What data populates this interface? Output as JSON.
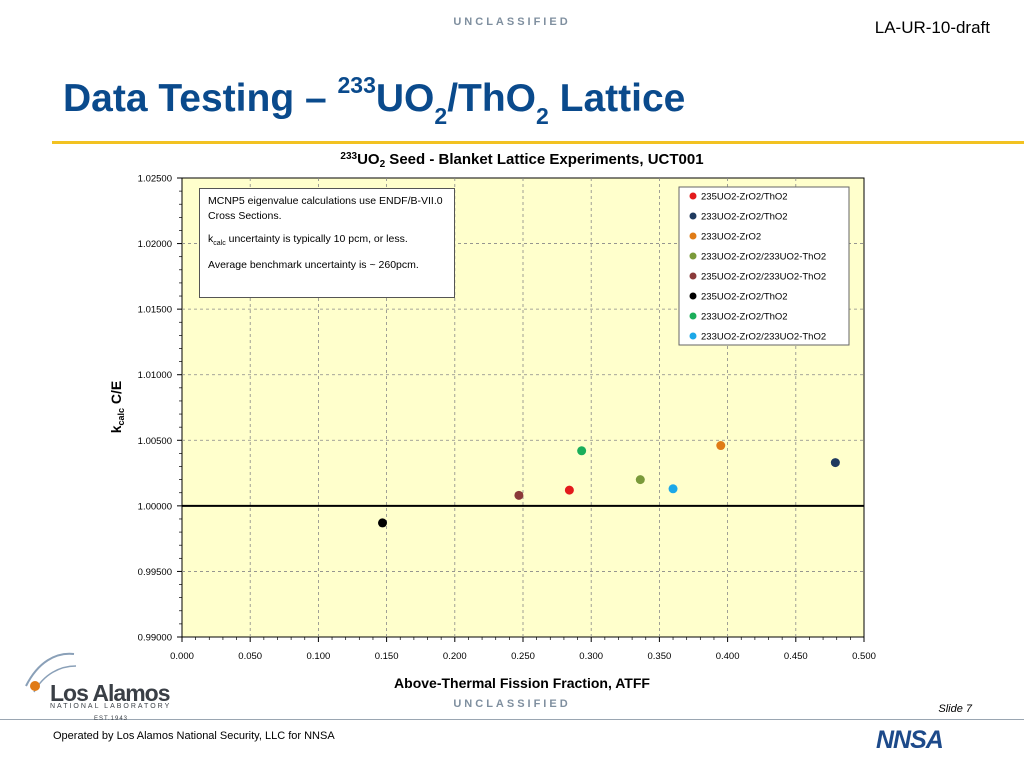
{
  "header": {
    "classification": "UNCLASSIFIED",
    "doc_id": "LA-UR-10-draft",
    "title_pre": "Data Testing – ",
    "title_sup": "233",
    "title_mid": "UO",
    "title_sub1": "2",
    "title_mid2": "/ThO",
    "title_sub2": "2",
    "title_post": " Lattice"
  },
  "chart_data": {
    "type": "scatter",
    "title_sup": "233",
    "title_pre": "UO",
    "title_sub": "2",
    "title_post": " Seed - Blanket Lattice Experiments, UCT001",
    "xlabel": "Above-Thermal Fission Fraction, ATFF",
    "ylabel_pre": "k",
    "ylabel_sub": "calc",
    "ylabel_post": " C/E",
    "xlim": [
      0.0,
      0.5
    ],
    "ylim": [
      0.99,
      1.025
    ],
    "x_ticks": [
      "0.000",
      "0.050",
      "0.100",
      "0.150",
      "0.200",
      "0.250",
      "0.300",
      "0.350",
      "0.400",
      "0.450",
      "0.500"
    ],
    "y_ticks": [
      "0.99000",
      "0.99500",
      "1.00000",
      "1.00500",
      "1.01000",
      "1.01500",
      "1.02000",
      "1.02500"
    ],
    "reference_line": 1.0,
    "grid": true,
    "legend_position": "top-right",
    "plot_background": "#ffffcc",
    "series": [
      {
        "name": "235UO2-ZrO2/ThO2",
        "color": "#e31a1c",
        "x": [
          0.284
        ],
        "y": [
          1.0012
        ]
      },
      {
        "name": "233UO2-ZrO2/ThO2",
        "color": "#1f3a5f",
        "x": [
          0.479
        ],
        "y": [
          1.0033
        ]
      },
      {
        "name": "233UO2-ZrO2",
        "color": "#e07b16",
        "x": [
          0.395
        ],
        "y": [
          1.0046
        ]
      },
      {
        "name": "233UO2-ZrO2/233UO2-ThO2",
        "color": "#7a9a3a",
        "x": [
          0.336
        ],
        "y": [
          1.002
        ]
      },
      {
        "name": "235UO2-ZrO2/233UO2-ThO2",
        "color": "#8b3a3a",
        "x": [
          0.247
        ],
        "y": [
          1.0008
        ]
      },
      {
        "name": "235UO2-ZrO2/ThO2",
        "color": "#000000",
        "x": [
          0.147
        ],
        "y": [
          0.9987
        ]
      },
      {
        "name": "233UO2-ZrO2/ThO2",
        "color": "#1aae5a",
        "x": [
          0.293
        ],
        "y": [
          1.0042
        ]
      },
      {
        "name": "233UO2-ZrO2/233UO2-ThO2",
        "color": "#1ca8e8",
        "x": [
          0.36
        ],
        "y": [
          1.0013
        ]
      }
    ],
    "annotation": {
      "line1": "MCNP5 eigenvalue calculations use ENDF/B-VII.0 Cross Sections.",
      "line2_pre": "k",
      "line2_sub": "calc",
      "line2_post": " uncertainty is typically 10 pcm, or less.",
      "line3": "Average benchmark uncertainty is ~ 260pcm."
    }
  },
  "footer": {
    "slide_number": "Slide 7",
    "operator_note": "Operated by Los Alamos National Security, LLC for NNSA",
    "lanl_name": "Los Alamos",
    "lanl_sub": "NATIONAL LABORATORY",
    "lanl_est": "EST.1943",
    "nnsa_logo": "NNSA"
  }
}
